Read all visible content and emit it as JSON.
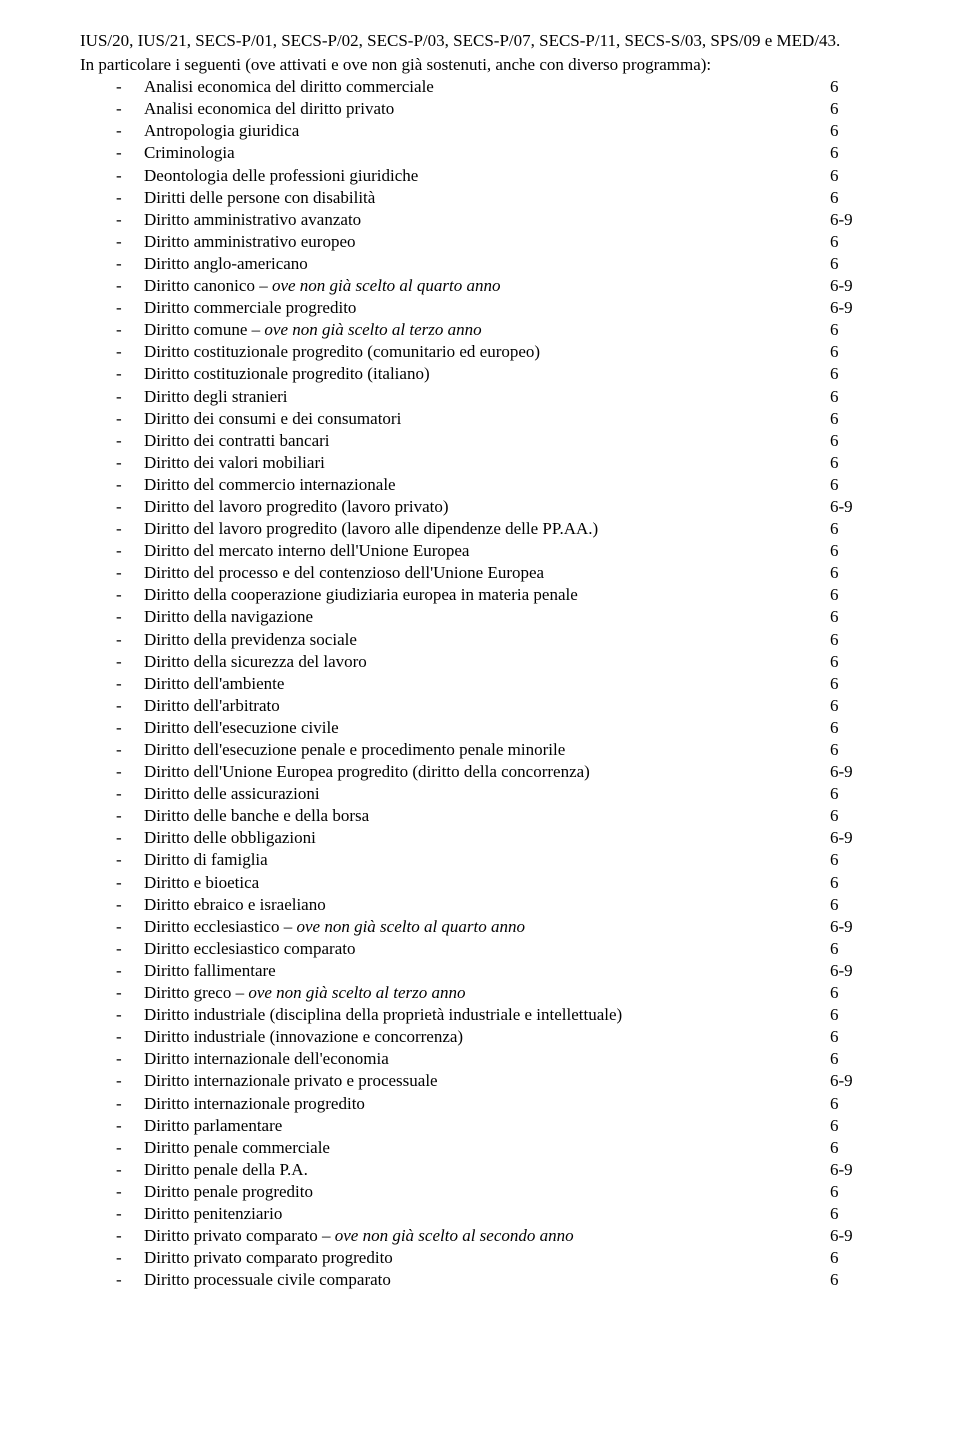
{
  "intro": "IUS/20, IUS/21, SECS-P/01, SECS-P/02, SECS-P/03, SECS-P/07, SECS-P/11, SECS-S/03, SPS/09 e MED/43.",
  "lead": "In particolare i seguenti (ove attivati e ove non già sostenuti, anche con diverso programma):",
  "items": [
    {
      "label": "Analisi economica del diritto commerciale",
      "val": "6"
    },
    {
      "label": "Analisi economica del diritto privato",
      "val": "6"
    },
    {
      "label": "Antropologia giuridica",
      "val": "6"
    },
    {
      "label": "Criminologia",
      "val": "6"
    },
    {
      "label": "Deontologia delle professioni giuridiche",
      "val": "6"
    },
    {
      "label": "Diritti delle persone con disabilità",
      "val": "6"
    },
    {
      "label": "Diritto amministrativo avanzato",
      "val": "6-9"
    },
    {
      "label": "Diritto amministrativo europeo",
      "val": "6"
    },
    {
      "label": "Diritto anglo-americano",
      "val": "6"
    },
    {
      "label": "Diritto canonico – ",
      "italic": "ove non già scelto al quarto anno",
      "val": "6-9"
    },
    {
      "label": "Diritto commerciale progredito",
      "val": "6-9"
    },
    {
      "label": "Diritto comune – ",
      "italic": "ove non già scelto al terzo anno",
      "val": "6"
    },
    {
      "label": "Diritto costituzionale progredito (comunitario ed europeo)",
      "val": "6"
    },
    {
      "label": "Diritto costituzionale progredito (italiano)",
      "val": "6"
    },
    {
      "label": "Diritto degli stranieri",
      "val": "6"
    },
    {
      "label": "Diritto dei consumi e dei consumatori",
      "val": "6"
    },
    {
      "label": "Diritto dei contratti bancari",
      "val": "6"
    },
    {
      "label": "Diritto dei valori mobiliari",
      "val": "6"
    },
    {
      "label": "Diritto del commercio internazionale",
      "val": "6"
    },
    {
      "label": "Diritto del lavoro progredito (lavoro privato)",
      "val": "6-9"
    },
    {
      "label": "Diritto del lavoro progredito (lavoro alle dipendenze delle PP.AA.)",
      "val": "6"
    },
    {
      "label": "Diritto del mercato interno dell'Unione Europea",
      "val": "6"
    },
    {
      "label": "Diritto del processo e del contenzioso dell'Unione Europea",
      "val": "6"
    },
    {
      "label": "Diritto della cooperazione giudiziaria europea in materia penale",
      "val": "6"
    },
    {
      "label": "Diritto della navigazione",
      "val": "6"
    },
    {
      "label": "Diritto della previdenza sociale",
      "val": "6"
    },
    {
      "label": "Diritto della sicurezza del lavoro",
      "val": "6"
    },
    {
      "label": "Diritto dell'ambiente",
      "val": "6"
    },
    {
      "label": "Diritto dell'arbitrato",
      "val": "6"
    },
    {
      "label": "Diritto dell'esecuzione civile",
      "val": "6"
    },
    {
      "label": "Diritto dell'esecuzione penale e procedimento penale minorile",
      "val": "6"
    },
    {
      "label": "Diritto dell'Unione Europea progredito (diritto della concorrenza)",
      "val": "6-9"
    },
    {
      "label": "Diritto delle assicurazioni",
      "val": "6"
    },
    {
      "label": "Diritto delle banche e della borsa",
      "val": "6"
    },
    {
      "label": "Diritto delle obbligazioni",
      "val": "6-9"
    },
    {
      "label": "Diritto di famiglia",
      "val": "6"
    },
    {
      "label": "Diritto e bioetica",
      "val": "6"
    },
    {
      "label": "Diritto ebraico e israeliano",
      "val": "6"
    },
    {
      "label": "Diritto ecclesiastico – ",
      "italic": "ove non già scelto al quarto anno",
      "val": "6-9"
    },
    {
      "label": "Diritto ecclesiastico comparato",
      "val": "6"
    },
    {
      "label": "Diritto fallimentare",
      "val": "6-9"
    },
    {
      "label": "Diritto greco – ",
      "italic": "ove non già scelto al terzo anno",
      "val": "6"
    },
    {
      "label": "Diritto industriale (disciplina della proprietà industriale e intellettuale)",
      "val": "6"
    },
    {
      "label": "Diritto industriale (innovazione e concorrenza)",
      "val": "6"
    },
    {
      "label": "Diritto internazionale dell'economia",
      "val": "6"
    },
    {
      "label": "Diritto internazionale privato e processuale",
      "val": "6-9"
    },
    {
      "label": "Diritto internazionale progredito",
      "val": "6"
    },
    {
      "label": "Diritto parlamentare",
      "val": "6"
    },
    {
      "label": "Diritto penale commerciale",
      "val": "6"
    },
    {
      "label": "Diritto penale della P.A.",
      "val": "6-9"
    },
    {
      "label": "Diritto penale progredito",
      "val": "6"
    },
    {
      "label": "Diritto penitenziario",
      "val": "6"
    },
    {
      "label": "Diritto privato comparato – ",
      "italic": "ove non già scelto al secondo anno",
      "val": "6-9"
    },
    {
      "label": "Diritto privato comparato progredito",
      "val": "6"
    },
    {
      "label": "Diritto processuale civile comparato",
      "val": "6"
    }
  ]
}
